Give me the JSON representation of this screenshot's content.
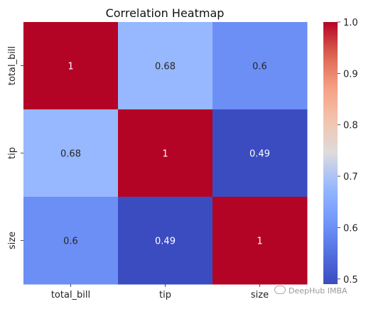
{
  "chart_data": {
    "type": "heatmap",
    "title": "Correlation Heatmap",
    "xlabel": "",
    "ylabel": "",
    "x_categories": [
      "total_bill",
      "tip",
      "size"
    ],
    "y_categories": [
      "total_bill",
      "tip",
      "size"
    ],
    "values": [
      [
        1,
        0.68,
        0.6
      ],
      [
        0.68,
        1,
        0.49
      ],
      [
        0.6,
        0.49,
        1
      ]
    ],
    "annotations": [
      [
        "1",
        "0.68",
        "0.6"
      ],
      [
        "0.68",
        "1",
        "0.49"
      ],
      [
        "0.6",
        "0.49",
        "1"
      ]
    ],
    "colormap": "coolwarm",
    "colorbar": {
      "vmin": 0.49,
      "vmax": 1.0,
      "ticks": [
        "0.5",
        "0.6",
        "0.7",
        "0.8",
        "0.9",
        "1.0"
      ],
      "tick_values": [
        0.5,
        0.6,
        0.7,
        0.8,
        0.9,
        1.0
      ]
    },
    "grid": false,
    "legend": "colorbar-right"
  },
  "watermark": {
    "text": "DeepHub IMBA"
  }
}
